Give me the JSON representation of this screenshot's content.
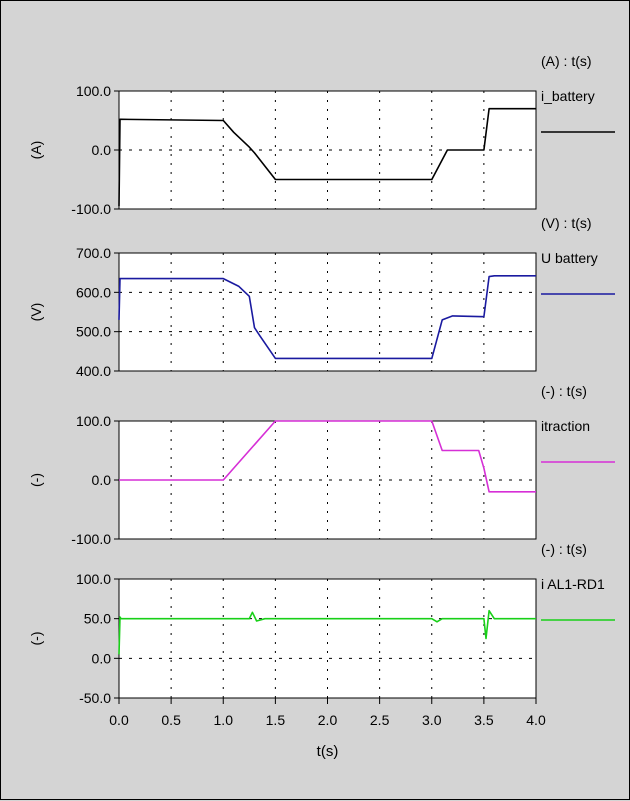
{
  "chart_data": [
    {
      "type": "line",
      "unit_header": "(A) : t(s)",
      "ylabel": "(A)",
      "ylim": [
        -100,
        100
      ],
      "yticks": [
        "100.0",
        "0.0",
        "-100.0"
      ],
      "ytick_values": [
        100,
        0,
        -100
      ],
      "series": [
        {
          "name": "i_battery",
          "color": "#000000",
          "x": [
            0.0,
            0.01,
            0.02,
            1.0,
            1.1,
            1.25,
            1.3,
            1.5,
            3.0,
            3.15,
            3.5,
            3.55,
            3.6,
            4.0
          ],
          "y": [
            -95,
            52,
            52,
            50,
            30,
            5,
            -5,
            -50,
            -50,
            0,
            0,
            70,
            70,
            70
          ]
        }
      ]
    },
    {
      "type": "line",
      "unit_header": "(V) : t(s)",
      "ylabel": "(V)",
      "ylim": [
        400,
        700
      ],
      "yticks": [
        "700.0",
        "600.0",
        "500.0",
        "400.0"
      ],
      "ytick_values": [
        700,
        600,
        500,
        400
      ],
      "series": [
        {
          "name": "U battery",
          "color": "#1a1aa0",
          "x": [
            0.0,
            0.01,
            1.0,
            1.15,
            1.25,
            1.3,
            1.35,
            1.5,
            3.0,
            3.1,
            3.2,
            3.5,
            3.55,
            3.6,
            4.0
          ],
          "y": [
            530,
            635,
            635,
            615,
            590,
            510,
            490,
            432,
            432,
            530,
            540,
            538,
            640,
            642,
            642
          ]
        }
      ]
    },
    {
      "type": "line",
      "unit_header": "(-) : t(s)",
      "ylabel": "(-)",
      "ylim": [
        -100,
        100
      ],
      "yticks": [
        "100.0",
        "0.0",
        "-100.0"
      ],
      "ytick_values": [
        100,
        0,
        -100
      ],
      "series": [
        {
          "name": "itraction",
          "color": "#d62fd6",
          "x": [
            0.0,
            1.0,
            1.5,
            3.0,
            3.1,
            3.45,
            3.5,
            3.55,
            4.0
          ],
          "y": [
            0,
            0,
            100,
            100,
            50,
            50,
            20,
            -20,
            -20
          ]
        }
      ]
    },
    {
      "type": "line",
      "unit_header": "(-) : t(s)",
      "ylabel": "(-)",
      "ylim": [
        -50,
        100
      ],
      "yticks": [
        "100.0",
        "50.0",
        "0.0",
        "-50.0"
      ],
      "ytick_values": [
        100,
        50,
        0,
        -50
      ],
      "series": [
        {
          "name": "i AL1-RD1",
          "color": "#18d018",
          "x": [
            0.0,
            0.01,
            0.02,
            1.25,
            1.28,
            1.32,
            1.4,
            3.0,
            3.05,
            3.1,
            3.5,
            3.52,
            3.55,
            3.6,
            4.0
          ],
          "y": [
            5,
            52,
            50,
            50,
            58,
            47,
            50,
            50,
            46,
            50,
            50,
            25,
            60,
            50,
            50
          ]
        }
      ]
    }
  ],
  "x_axis": {
    "label": "t(s)",
    "ticks": [
      "0.0",
      "0.5",
      "1.0",
      "1.5",
      "2.0",
      "2.5",
      "3.0",
      "3.5",
      "4.0"
    ],
    "tick_values": [
      0,
      0.5,
      1.0,
      1.5,
      2.0,
      2.5,
      3.0,
      3.5,
      4.0
    ],
    "xlim": [
      0,
      4
    ]
  },
  "style": {
    "background": "#d4d4d4",
    "plot_background": "#ffffff",
    "grid": "dotted"
  }
}
